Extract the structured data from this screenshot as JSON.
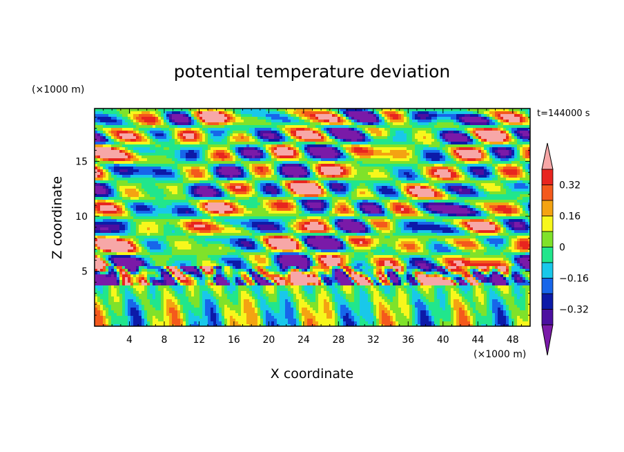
{
  "chart_data": {
    "type": "heatmap",
    "title": "potential temperature deviation",
    "xlabel": "X coordinate",
    "ylabel": "Z coordinate",
    "x_unit": "(×1000 m)",
    "y_unit": "(×1000 m)",
    "time_label": "t=144000 s",
    "xlim": [
      0,
      50
    ],
    "ylim": [
      0,
      19.8
    ],
    "x_ticks": [
      4,
      8,
      12,
      16,
      20,
      24,
      28,
      32,
      36,
      40,
      44,
      48
    ],
    "x_tick_labels": [
      "4",
      "8",
      "12",
      "16",
      "20",
      "24",
      "28",
      "32",
      "36",
      "40",
      "44",
      "48"
    ],
    "y_ticks": [
      5,
      10,
      15
    ],
    "y_tick_labels": [
      "5",
      "10",
      "15"
    ],
    "colorbar": {
      "levels": [
        -0.4,
        -0.32,
        -0.24,
        -0.16,
        -0.08,
        0,
        0.08,
        0.16,
        0.24,
        0.32,
        0.4
      ],
      "labeled_levels": [
        -0.32,
        -0.16,
        0,
        0.16,
        0.32
      ],
      "labels": [
        "0.32",
        "0.16",
        "0",
        "−0.16",
        "−0.32"
      ],
      "extend": "both",
      "colors": [
        "#7a1aa8",
        "#4b0fa0",
        "#0c1aa8",
        "#1766ea",
        "#19c8ea",
        "#21e68c",
        "#7fe22a",
        "#f7f71c",
        "#f4a312",
        "#f4591c",
        "#e8251f",
        "#f7a7a7"
      ]
    }
  }
}
